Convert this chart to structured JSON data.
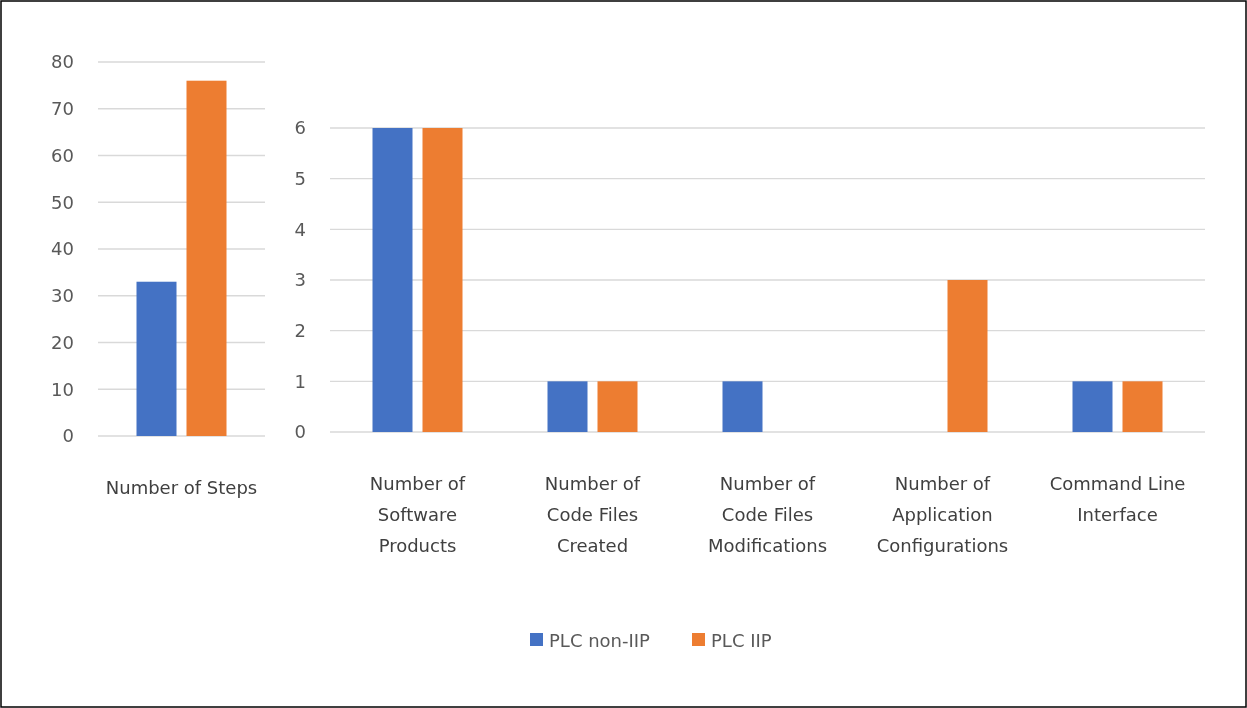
{
  "chart_data": [
    {
      "type": "bar",
      "categories": [
        "Number of Steps"
      ],
      "series": [
        {
          "color": "#4472c4",
          "values": [
            33
          ]
        },
        {
          "color": "#ed7d31",
          "values": [
            76
          ]
        }
      ],
      "ylim": [
        0,
        80
      ],
      "yticks": [
        0,
        10,
        20,
        30,
        40,
        50,
        60,
        70,
        80
      ],
      "grid": "y",
      "legend": false
    },
    {
      "type": "bar",
      "categories": [
        "Number of Software Products",
        "Number of Code Files Created",
        "Number of Code Files Modifications",
        "Number of Application Configurations",
        "Command Line Interface"
      ],
      "series": [
        {
          "name": "PLC non-IIP",
          "color": "#4472c4",
          "values": [
            6,
            1,
            1,
            0,
            1
          ]
        },
        {
          "name": "PLC IIP",
          "color": "#ed7d31",
          "values": [
            6,
            1,
            0,
            3,
            1
          ]
        }
      ],
      "ylim": [
        0,
        6
      ],
      "yticks": [
        0,
        1,
        2,
        3,
        4,
        5,
        6
      ],
      "grid": "y",
      "legend": "bottom"
    }
  ]
}
